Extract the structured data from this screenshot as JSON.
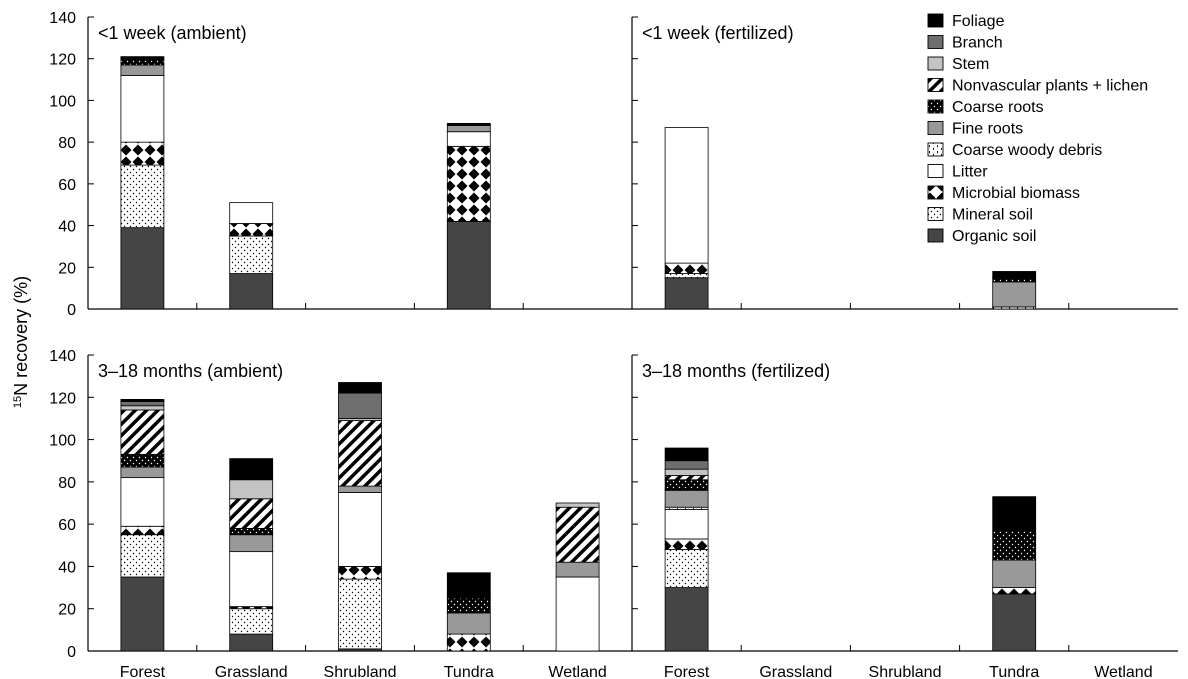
{
  "chart_data": {
    "type": "bar",
    "stacked": true,
    "ylabel": "15N recovery (%)",
    "ylabel_superscript": "15",
    "ylabel_rest": "N recovery (%)",
    "ylim": [
      0,
      140
    ],
    "yticks": [
      0,
      20,
      40,
      60,
      80,
      100,
      120,
      140
    ],
    "categories": [
      "Forest",
      "Grassland",
      "Shrubland",
      "Tundra",
      "Wetland"
    ],
    "legend_position": "top-right",
    "legend": [
      {
        "key": "foliage",
        "label": "Foliage",
        "pattern": "black"
      },
      {
        "key": "branch",
        "label": "Branch",
        "pattern": "darkgray"
      },
      {
        "key": "stem",
        "label": "Stem",
        "pattern": "lightgray"
      },
      {
        "key": "nonvascular",
        "label": "Nonvascular plants + lichen",
        "pattern": "diagonal"
      },
      {
        "key": "coarse_roots",
        "label": "Coarse roots",
        "pattern": "black-dots"
      },
      {
        "key": "fine_roots",
        "label": "Fine roots",
        "pattern": "gray"
      },
      {
        "key": "cwd",
        "label": "Coarse woody debris",
        "pattern": "dashes"
      },
      {
        "key": "litter",
        "label": "Litter",
        "pattern": "white"
      },
      {
        "key": "microbial",
        "label": "Microbial biomass",
        "pattern": "diamonds"
      },
      {
        "key": "mineral_soil",
        "label": "Mineral soil",
        "pattern": "dots"
      },
      {
        "key": "organic_soil",
        "label": "Organic soil",
        "pattern": "charcoal"
      }
    ],
    "panels": [
      {
        "title": "<1 week (ambient)",
        "bars": {
          "Forest": {
            "organic_soil": 39,
            "mineral_soil": 30,
            "microbial": 11,
            "litter": 32,
            "fine_roots": 5,
            "coarse_roots": 3,
            "foliage": 1
          },
          "Grassland": {
            "organic_soil": 17,
            "mineral_soil": 18,
            "microbial": 6,
            "litter": 10
          },
          "Tundra": {
            "organic_soil": 42,
            "microbial": 36,
            "litter": 7,
            "fine_roots": 3,
            "foliage": 1
          }
        }
      },
      {
        "title": "<1 week (fertilized)",
        "bars": {
          "Forest": {
            "organic_soil": 15,
            "mineral_soil": 2,
            "microbial": 5,
            "litter": 65
          },
          "Tundra": {
            "fine_roots": 12,
            "cwd": 1,
            "coarse_roots": 2,
            "foliage": 3
          }
        }
      },
      {
        "title": "3–18 months (ambient)",
        "bars": {
          "Forest": {
            "organic_soil": 35,
            "mineral_soil": 20,
            "microbial": 4,
            "litter": 23,
            "fine_roots": 5,
            "coarse_roots": 6,
            "nonvascular": 21,
            "stem": 2,
            "branch": 2,
            "foliage": 1
          },
          "Grassland": {
            "organic_soil": 8,
            "mineral_soil": 12,
            "microbial": 1,
            "litter": 26,
            "fine_roots": 8,
            "coarse_roots": 3,
            "nonvascular": 14,
            "stem": 9,
            "foliage": 10
          },
          "Shrubland": {
            "organic_soil": 1,
            "mineral_soil": 33,
            "microbial": 6,
            "litter": 35,
            "fine_roots": 3,
            "nonvascular": 31,
            "stem": 1,
            "branch": 12,
            "foliage": 5
          },
          "Tundra": {
            "microbial": 8,
            "fine_roots": 10,
            "coarse_roots": 7,
            "foliage": 12
          },
          "Wetland": {
            "litter": 35,
            "fine_roots": 7,
            "nonvascular": 26,
            "stem": 2
          }
        }
      },
      {
        "title": "3–18 months (fertilized)",
        "bars": {
          "Forest": {
            "organic_soil": 30,
            "mineral_soil": 18,
            "microbial": 5,
            "litter": 14,
            "cwd": 1,
            "fine_roots": 8,
            "coarse_roots": 5,
            "nonvascular": 2,
            "stem": 3,
            "branch": 4,
            "foliage": 6
          },
          "Tundra": {
            "organic_soil": 27,
            "microbial": 3,
            "fine_roots": 13,
            "coarse_roots": 14,
            "foliage": 16
          }
        }
      }
    ]
  }
}
